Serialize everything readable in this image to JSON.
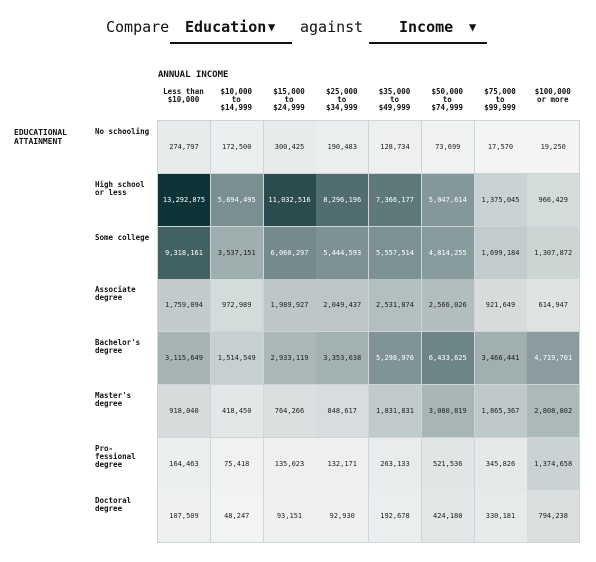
{
  "header": {
    "compare_word": "Compare",
    "against_word": "against",
    "dropdown_left": "Education",
    "dropdown_right": "Income"
  },
  "chart_data": {
    "type": "heatmap",
    "title": "",
    "x_group_label": "ANNUAL INCOME",
    "y_group_label": "EDUCATIONAL\nATTAINMENT",
    "columns": [
      "Less than\n$10,000",
      "$10,000\nto\n$14,999",
      "$15,000\nto\n$24,999",
      "$25,000\nto\n$34,999",
      "$35,000\nto\n$49,999",
      "$50,000\nto\n$74,999",
      "$75,000\nto\n$99,999",
      "$100,000\nor more"
    ],
    "rows": [
      "No schooling",
      "High school\nor less",
      "Some college",
      "Associate\ndegree",
      "Bachelor's\ndegree",
      "Master's\ndegree",
      "Pro-\nfessional\ndegree",
      "Doctoral\ndegree"
    ],
    "values": [
      [
        274797,
        172500,
        300425,
        190483,
        128734,
        73699,
        17570,
        19250
      ],
      [
        13292875,
        5694495,
        11032516,
        8296196,
        7366177,
        5047614,
        1375045,
        966429
      ],
      [
        9318161,
        3537151,
        6060297,
        5444593,
        5557514,
        4814255,
        1699184,
        1307872
      ],
      [
        1759094,
        972989,
        1989927,
        2049437,
        2531874,
        2566026,
        921649,
        614947
      ],
      [
        3115649,
        1514549,
        2933119,
        3353638,
        5298976,
        6433625,
        3466441,
        4719701
      ],
      [
        918040,
        418450,
        764266,
        848617,
        1831831,
        3080819,
        1865367,
        2808802
      ],
      [
        164463,
        75418,
        135023,
        132171,
        263133,
        521536,
        345826,
        1374658
      ],
      [
        107509,
        48247,
        93151,
        92930,
        192678,
        424180,
        330181,
        794238
      ]
    ],
    "color_range": [
      "#f5f6f6",
      "#0c3336"
    ]
  }
}
